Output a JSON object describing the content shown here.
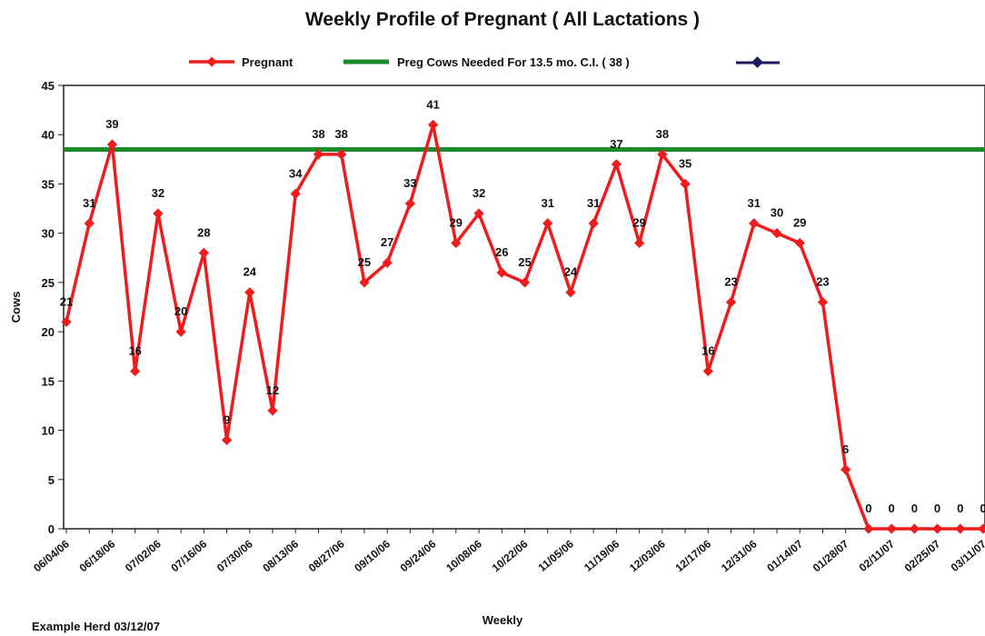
{
  "chart_data": {
    "type": "line",
    "title": "Weekly Profile of Pregnant ( All Lactations )",
    "x_label": "Weekly",
    "y_label": "Cows",
    "footnote": "Example Herd 03/12/07",
    "categories": [
      "06/04/06",
      null,
      "06/18/06",
      null,
      "07/02/06",
      null,
      "07/16/06",
      null,
      "07/30/06",
      null,
      "08/13/06",
      null,
      "08/27/06",
      null,
      "09/10/06",
      null,
      "09/24/06",
      null,
      "10/08/06",
      null,
      "10/22/06",
      null,
      "11/05/06",
      null,
      "11/19/06",
      null,
      "12/03/06",
      null,
      "12/17/06",
      null,
      "12/31/06",
      null,
      "01/14/07",
      null,
      "01/28/07",
      null,
      "02/11/07",
      null,
      "02/25/07",
      null,
      "03/11/07"
    ],
    "series": [
      {
        "name": "Pregnant",
        "color": "#ee1c1c",
        "values": [
          21,
          31,
          39,
          16,
          32,
          20,
          28,
          9,
          24,
          12,
          34,
          38,
          38,
          25,
          27,
          33,
          41,
          29,
          32,
          26,
          25,
          31,
          24,
          31,
          37,
          29,
          38,
          35,
          16,
          23,
          31,
          30,
          29,
          23,
          6,
          0,
          0,
          0,
          0,
          0,
          0
        ]
      }
    ],
    "reference_line": {
      "name": "Preg Cows Needed For 13.5 mo. C.I. ( 38 )",
      "value": 38.5,
      "color": "#1a8a2a"
    },
    "ylim": [
      0,
      45
    ],
    "yticks": [
      0,
      5,
      10,
      15,
      20,
      25,
      30,
      35,
      40,
      45
    ]
  }
}
